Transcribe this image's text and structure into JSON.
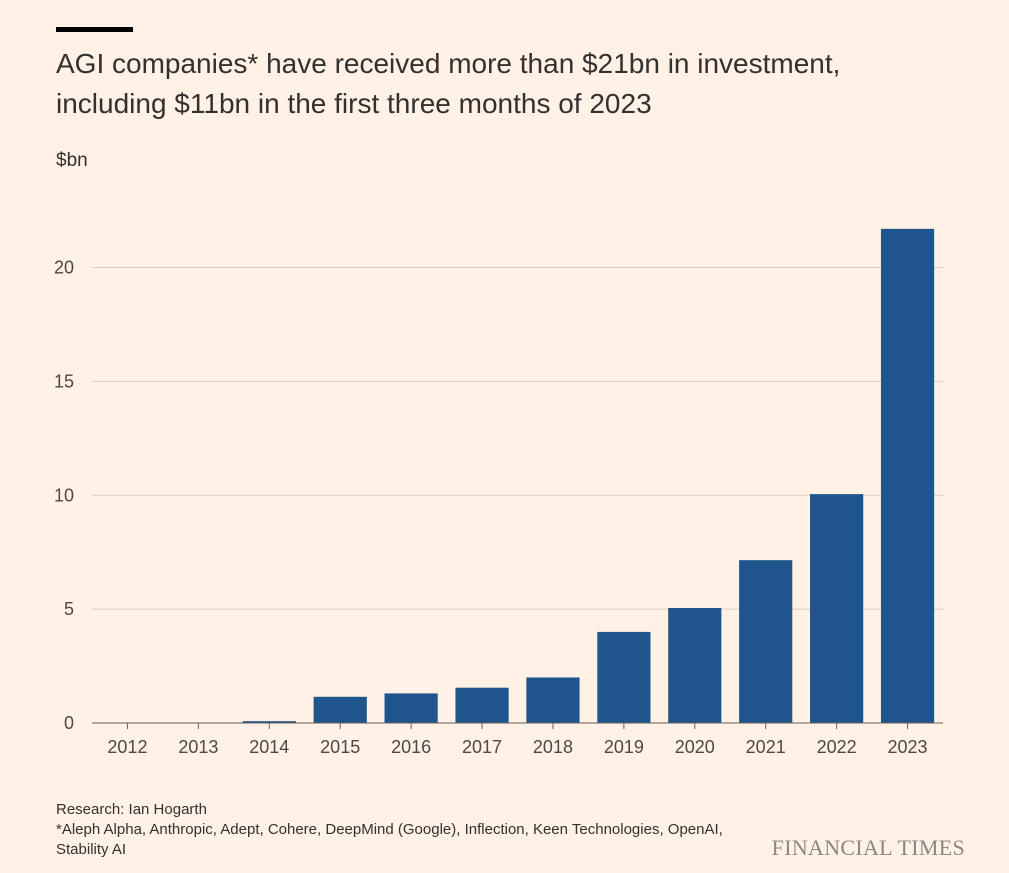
{
  "header": {
    "title": "AGI companies* have received more than $21bn in investment, including $11bn in the first three months of 2023"
  },
  "chart_data": {
    "type": "bar",
    "title": "AGI companies* have received more than $21bn in investment, including $11bn in the first three months of 2023",
    "ylabel": "$bn",
    "xlabel": "",
    "categories": [
      "2012",
      "2013",
      "2014",
      "2015",
      "2016",
      "2017",
      "2018",
      "2019",
      "2020",
      "2021",
      "2022",
      "2023"
    ],
    "values": [
      0.02,
      0.02,
      0.08,
      1.15,
      1.3,
      1.55,
      2.0,
      4.0,
      5.05,
      7.15,
      10.05,
      21.7
    ],
    "ylim": [
      0,
      22
    ],
    "yticks": [
      0,
      5,
      10,
      15,
      20
    ],
    "grid": true,
    "bar_color": "#1e558c"
  },
  "footer": {
    "source": "Research: Ian Hogarth",
    "note": "*Aleph Alpha, Anthropic, Adept, Cohere, DeepMind (Google), Inflection, Keen Technologies, OpenAI, Stability AI"
  },
  "brand": "FINANCIAL TIMES",
  "colors": {
    "background": "#fff1e5",
    "bar": "#1e558c",
    "gridline": "#d9cdc3",
    "text": "#33302e"
  }
}
